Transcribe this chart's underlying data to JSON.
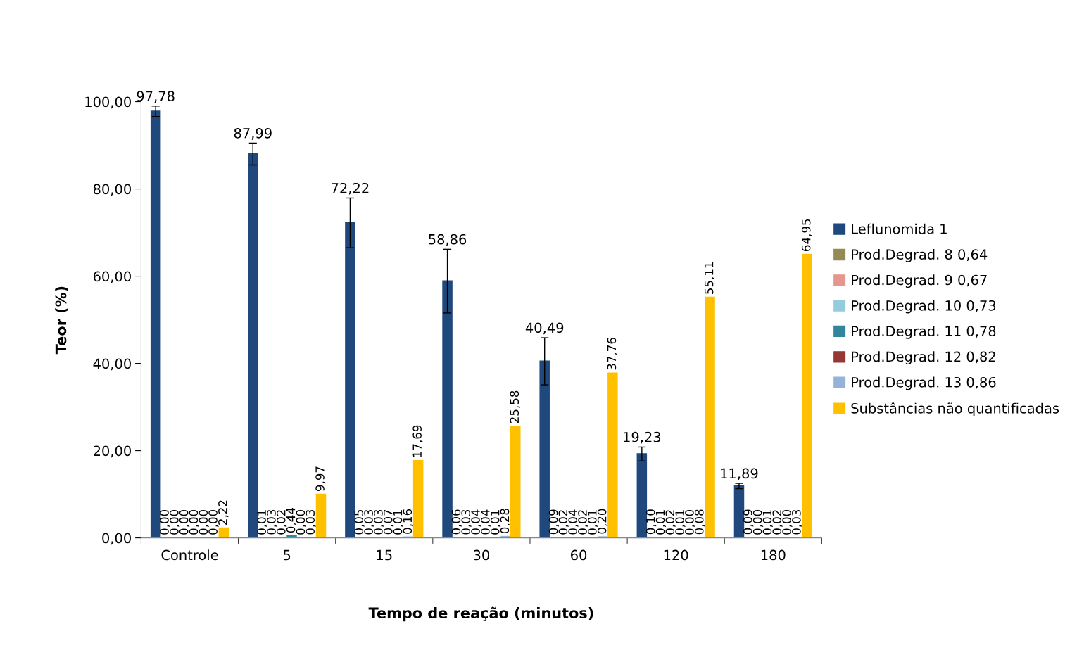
{
  "chart_data": {
    "type": "bar",
    "xlabel": "Tempo de reação (minutos)",
    "ylabel": "Teor (%)",
    "categories": [
      "Controle",
      "5",
      "15",
      "30",
      "60",
      "120",
      "180"
    ],
    "ylim": [
      0,
      100
    ],
    "yticks": [
      {
        "value": 0,
        "label": "0,00"
      },
      {
        "value": 20,
        "label": "20,00"
      },
      {
        "value": 40,
        "label": "40,00"
      },
      {
        "value": 60,
        "label": "60,00"
      },
      {
        "value": 80,
        "label": "80,00"
      },
      {
        "value": 100,
        "label": "100,00"
      }
    ],
    "grid": false,
    "legend": "right",
    "series": [
      {
        "name": "Leflunomida 1",
        "color": "#1f497d",
        "values": [
          97.78,
          87.99,
          72.22,
          58.86,
          40.49,
          19.23,
          11.89
        ],
        "errors": [
          1.2,
          2.5,
          5.7,
          7.3,
          5.4,
          1.6,
          0.6
        ],
        "value_labels": [
          "97,78",
          "87,99",
          "72,22",
          "58,86",
          "40,49",
          "19,23",
          "11,89"
        ]
      },
      {
        "name": "Prod.Degrad. 8 0,64",
        "color": "#948a54",
        "values": [
          0.0,
          0.01,
          0.05,
          0.06,
          0.09,
          0.1,
          0.09
        ],
        "value_labels": [
          "0,00",
          "0,01",
          "0,05",
          "0,06",
          "0,09",
          "0,10",
          "0,09"
        ]
      },
      {
        "name": "Prod.Degrad. 9 0,67",
        "color": "#e6968f",
        "values": [
          0.0,
          0.03,
          0.03,
          0.03,
          0.02,
          0.01,
          0.0
        ],
        "value_labels": [
          "0,00",
          "0,03",
          "0,03",
          "0,03",
          "0,02",
          "0,01",
          "0,00"
        ]
      },
      {
        "name": "Prod.Degrad. 10 0,73",
        "color": "#93cddd",
        "values": [
          0.0,
          0.02,
          0.03,
          0.04,
          0.04,
          0.02,
          0.01
        ],
        "value_labels": [
          "0,00",
          "0,02",
          "0,03",
          "0,04",
          "0,04",
          "0,02",
          "0,01"
        ]
      },
      {
        "name": "Prod.Degrad. 11 0,78",
        "color": "#31859c",
        "values": [
          0.0,
          0.44,
          0.07,
          0.04,
          0.02,
          0.01,
          0.02
        ],
        "value_labels": [
          "0,00",
          "0,44",
          "0,07",
          "0,04",
          "0,02",
          "0,01",
          "0,02"
        ]
      },
      {
        "name": "Prod.Degrad. 12 0,82",
        "color": "#953735",
        "values": [
          0.0,
          0.0,
          0.01,
          0.01,
          0.01,
          0.0,
          0.0
        ],
        "value_labels": [
          "0,00",
          "0,00",
          "0,01",
          "0,01",
          "0,01",
          "0,00",
          "0,00"
        ]
      },
      {
        "name": "Prod.Degrad. 13 0,86",
        "color": "#95b3d7",
        "values": [
          0.0,
          0.03,
          0.16,
          0.28,
          0.2,
          0.08,
          0.03
        ],
        "value_labels": [
          "0,00",
          "0,03",
          "0,16",
          "0,28",
          "0,20",
          "0,08",
          "0,03"
        ]
      },
      {
        "name": "Substâncias não quantificadas",
        "color": "#ffc000",
        "values": [
          2.22,
          9.97,
          17.69,
          25.58,
          37.76,
          55.11,
          64.95
        ],
        "value_labels": [
          "2,22",
          "9,97",
          "17,69",
          "25,58",
          "37,76",
          "55,11",
          "64,95"
        ]
      }
    ]
  }
}
